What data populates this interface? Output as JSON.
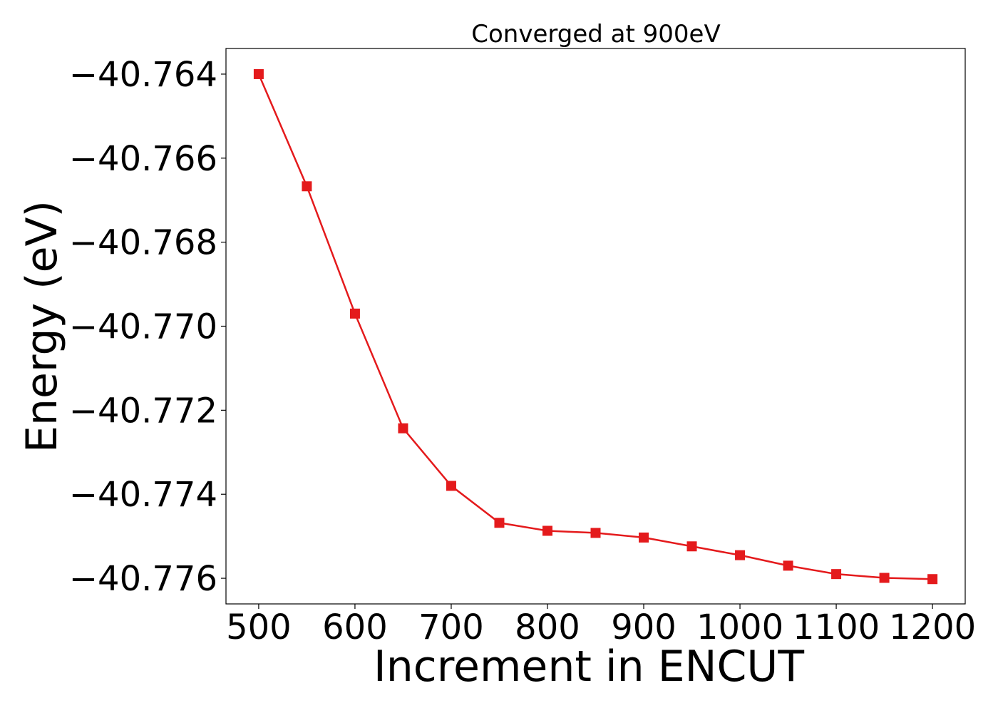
{
  "chart_data": {
    "type": "line",
    "title": "Converged at 900eV",
    "xlabel": "Increment in ENCUT",
    "ylabel": "Energy (eV)",
    "xlim": [
      466,
      1234
    ],
    "ylim": [
      -40.77661,
      -40.76339
    ],
    "xticks": [
      500,
      600,
      700,
      800,
      900,
      1000,
      1100,
      1200
    ],
    "yticks": [
      -40.764,
      -40.766,
      -40.768,
      -40.77,
      -40.772,
      -40.774,
      -40.776
    ],
    "ytick_labels": [
      "−40.764",
      "−40.766",
      "−40.768",
      "−40.770",
      "−40.772",
      "−40.774",
      "−40.776"
    ],
    "grid": false,
    "legend": "none",
    "marker": "square",
    "color": "#e41a1c",
    "series": [
      {
        "x": [
          500,
          550,
          600,
          650,
          700,
          750,
          800,
          850,
          900,
          950,
          1000,
          1050,
          1100,
          1150,
          1200
        ],
        "values": [
          -40.764,
          -40.76667,
          -40.7697,
          -40.77243,
          -40.7738,
          -40.77468,
          -40.77487,
          -40.77492,
          -40.77503,
          -40.77524,
          -40.77545,
          -40.7757,
          -40.7759,
          -40.77599,
          -40.77602
        ]
      }
    ]
  }
}
